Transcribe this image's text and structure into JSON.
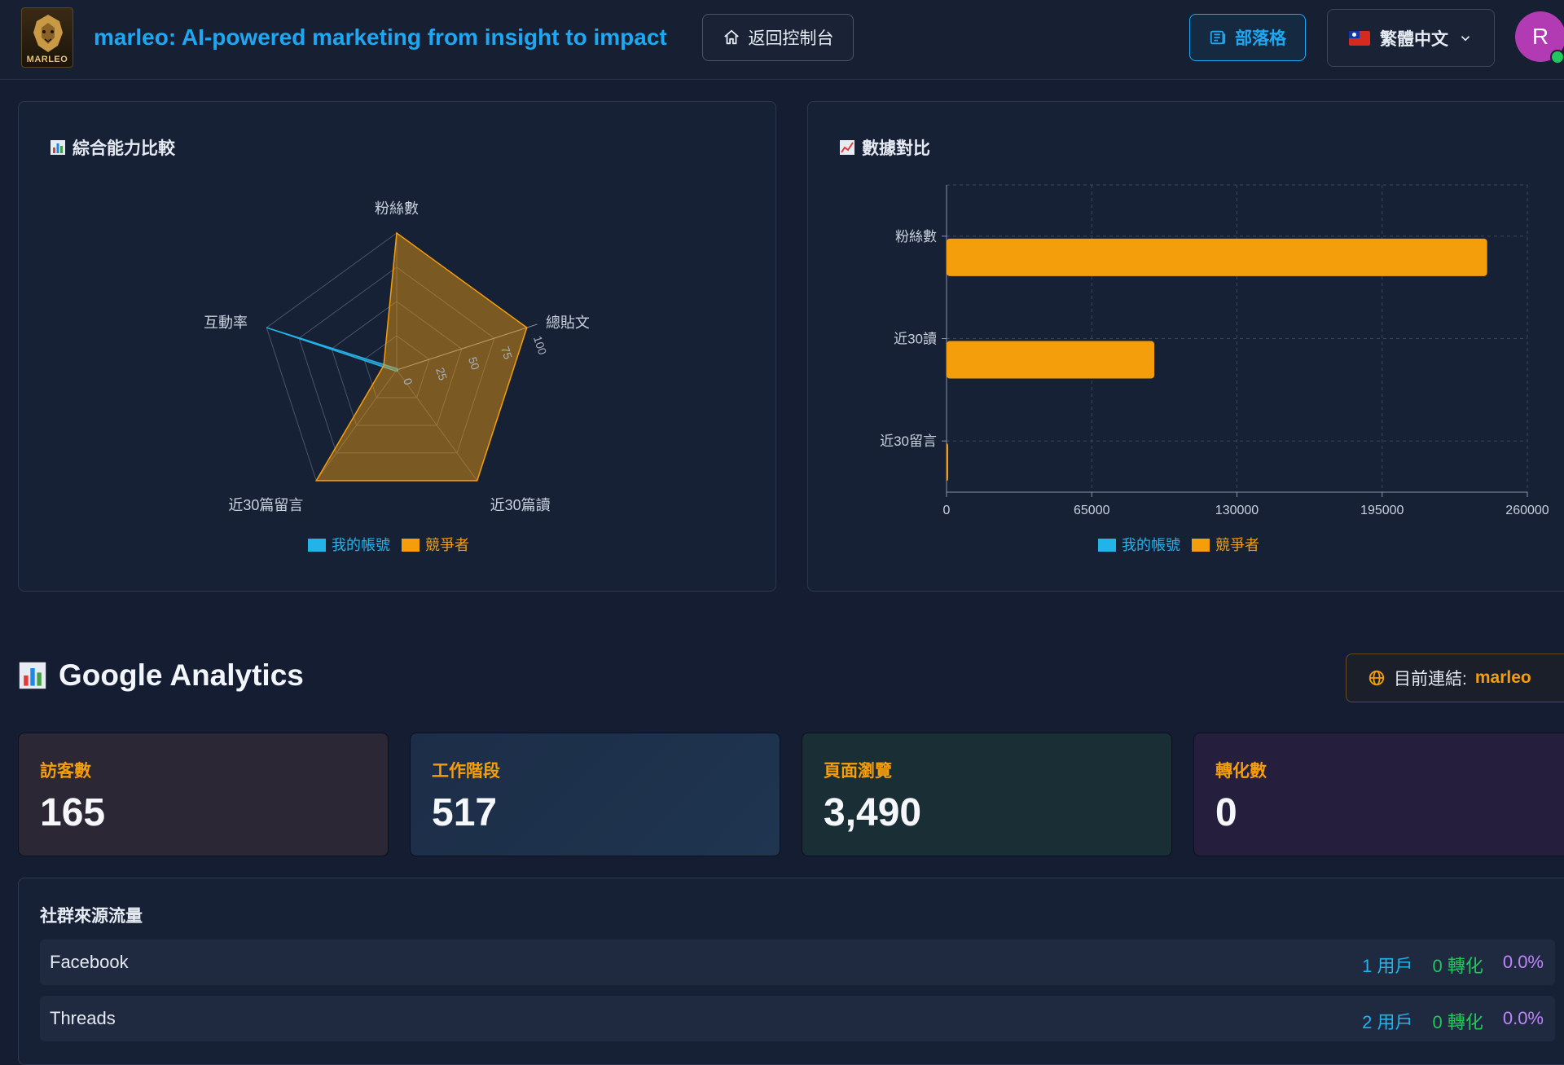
{
  "header": {
    "logo_text": "MARLEO",
    "app_title": "marleo: AI-powered marketing from insight to impact",
    "back_label": "返回控制台",
    "blog_label": "部落格",
    "language_label": "繁體中文",
    "avatar_initial": "R"
  },
  "radar_panel": {
    "title": "綜合能力比較",
    "chart_data": {
      "type": "radar",
      "axes": [
        "粉絲數",
        "總貼文",
        "近30篇讀",
        "近30篇留言",
        "互動率"
      ],
      "rlim": [
        0,
        100
      ],
      "ticks": [
        "0",
        "25",
        "50",
        "75",
        "100"
      ],
      "series": [
        {
          "name": "我的帳號",
          "color": "#22b4e9",
          "values": [
            1,
            1,
            1,
            1,
            100
          ]
        },
        {
          "name": "競爭者",
          "color": "#f59e0b",
          "values": [
            100,
            100,
            100,
            100,
            10
          ]
        }
      ],
      "legend": "bottom"
    }
  },
  "bar_panel": {
    "title": "數據對比",
    "chart_data": {
      "type": "bar",
      "orientation": "horizontal",
      "categories": [
        "粉絲數",
        "近30讀",
        "近30留言"
      ],
      "xlim": [
        0,
        260000
      ],
      "xticks": [
        "0",
        "65000",
        "130000",
        "195000",
        "260000"
      ],
      "series": [
        {
          "name": "我的帳號",
          "color": "#22b4e9",
          "values": [
            0,
            0,
            0
          ]
        },
        {
          "name": "競爭者",
          "color": "#f59e0b",
          "values": [
            242000,
            93000,
            600
          ]
        }
      ],
      "grid": true,
      "legend": "bottom"
    }
  },
  "ga": {
    "title": "Google Analytics",
    "connection_label": "目前連結:",
    "connection_account": "marleo",
    "stats": [
      {
        "label": "訪客數",
        "value": "165"
      },
      {
        "label": "工作階段",
        "value": "517"
      },
      {
        "label": "頁面瀏覽",
        "value": "3,490"
      },
      {
        "label": "轉化數",
        "value": "0"
      }
    ],
    "social": {
      "title": "社群來源流量",
      "rows": [
        {
          "name": "Facebook",
          "users": "1 用戶",
          "conversions": "0 轉化",
          "rate": "0.0%"
        },
        {
          "name": "Threads",
          "users": "2 用戶",
          "conversions": "0 轉化",
          "rate": "0.0%"
        }
      ]
    }
  }
}
